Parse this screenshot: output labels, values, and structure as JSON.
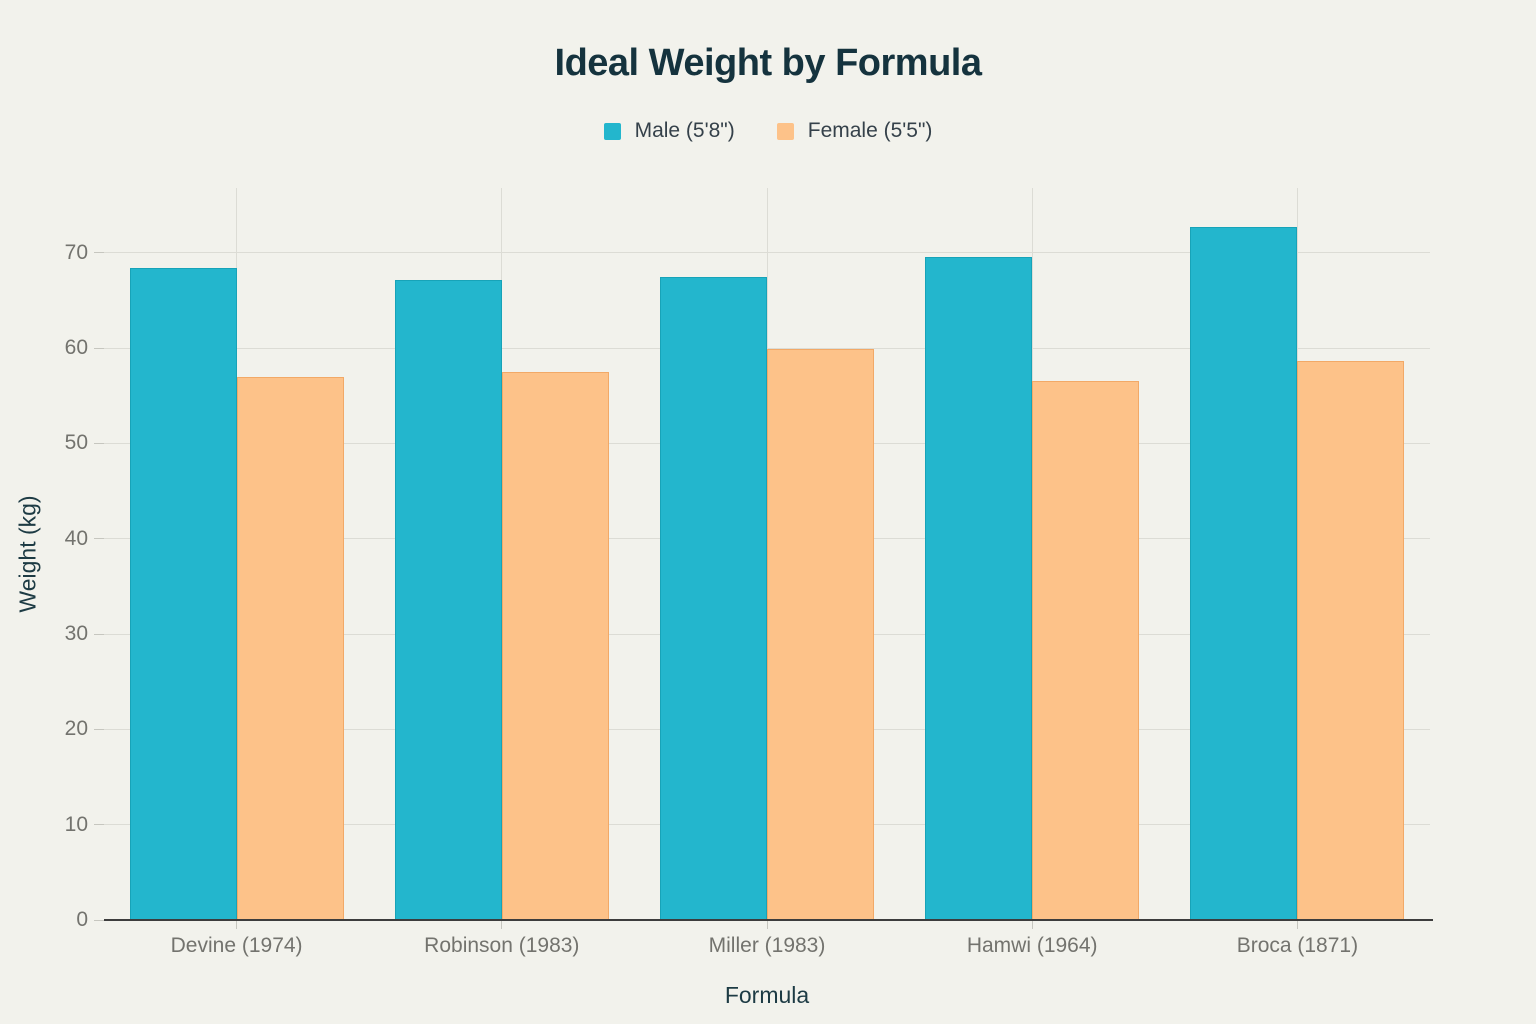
{
  "chart_data": {
    "type": "bar",
    "title": "Ideal Weight by Formula",
    "xlabel": "Formula",
    "ylabel": "Weight (kg)",
    "categories": [
      "Devine (1974)",
      "Robinson (1983)",
      "Miller (1983)",
      "Hamwi (1964)",
      "Broca (1871)"
    ],
    "series": [
      {
        "name": "Male (5'8\")",
        "color": "#23b6cd",
        "stroke": "#17a3b8",
        "values": [
          68.4,
          67.2,
          67.5,
          69.6,
          72.7
        ]
      },
      {
        "name": "Female (5'5\")",
        "color": "#fdc289",
        "stroke": "#f2a967",
        "values": [
          57.0,
          57.5,
          59.9,
          56.5,
          58.6
        ]
      }
    ],
    "ylim": [
      0,
      76.8
    ],
    "ytick_step": 10,
    "ytick_labels": [
      "0",
      "10",
      "20",
      "30",
      "40",
      "50",
      "60",
      "70"
    ],
    "grid": true,
    "legend_position": "top-center",
    "background_color": "#f2f2ec",
    "gridline_color": "#dcdcd5",
    "axis_line_color": "#3d3d3d",
    "tick_label_color": "#73736e",
    "title_color": "#15333e"
  }
}
